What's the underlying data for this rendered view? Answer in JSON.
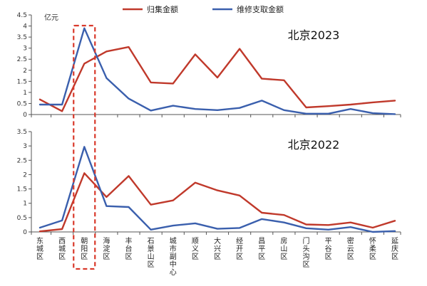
{
  "chart_data": {
    "type": "line",
    "unit": "亿元",
    "colors": {
      "归集金额": "#c0392b",
      "维修支取金额": "#3a5fad"
    },
    "categories": [
      "东城区",
      "西城区",
      "朝阳区",
      "海淀区",
      "丰台区",
      "石景山区",
      "城市副中心",
      "顺义区",
      "大兴区",
      "经开区",
      "昌平区",
      "房山区",
      "门头沟区",
      "平谷区",
      "密云区",
      "怀柔区",
      "延庆区"
    ],
    "highlight_category": "朝阳区",
    "legend": [
      "归集金额",
      "维修支取金额"
    ],
    "legend_position": "top-center",
    "panels": [
      {
        "title": "北京2023",
        "ylim": [
          0,
          4.5
        ],
        "yticks": [
          0,
          0.5,
          1,
          1.5,
          2,
          2.5,
          3,
          3.5,
          4,
          4.5
        ],
        "series": [
          {
            "name": "归集金额",
            "values": [
              0.68,
              0.15,
              2.3,
              2.85,
              3.05,
              1.45,
              1.4,
              2.72,
              1.67,
              2.97,
              1.62,
              1.55,
              0.32,
              0.38,
              0.45,
              0.55,
              0.63
            ]
          },
          {
            "name": "维修支取金额",
            "values": [
              0.45,
              0.45,
              3.9,
              1.65,
              0.72,
              0.18,
              0.4,
              0.25,
              0.2,
              0.3,
              0.63,
              0.2,
              0.04,
              0.04,
              0.25,
              0.06,
              0.02
            ]
          }
        ]
      },
      {
        "title": "北京2022",
        "ylim": [
          0,
          3.5
        ],
        "yticks": [
          0,
          0.5,
          1,
          1.5,
          2,
          2.5,
          3,
          3.5
        ],
        "series": [
          {
            "name": "归集金额",
            "values": [
              0.02,
              0.1,
              2.05,
              1.22,
              1.95,
              0.95,
              1.1,
              1.72,
              1.45,
              1.27,
              0.67,
              0.59,
              0.26,
              0.24,
              0.33,
              0.15,
              0.39
            ]
          },
          {
            "name": "维修支取金额",
            "values": [
              0.15,
              0.4,
              2.97,
              0.9,
              0.87,
              0.08,
              0.22,
              0.3,
              0.11,
              0.14,
              0.45,
              0.33,
              0.13,
              0.08,
              0.17,
              0.0,
              0.03
            ]
          }
        ]
      }
    ]
  }
}
